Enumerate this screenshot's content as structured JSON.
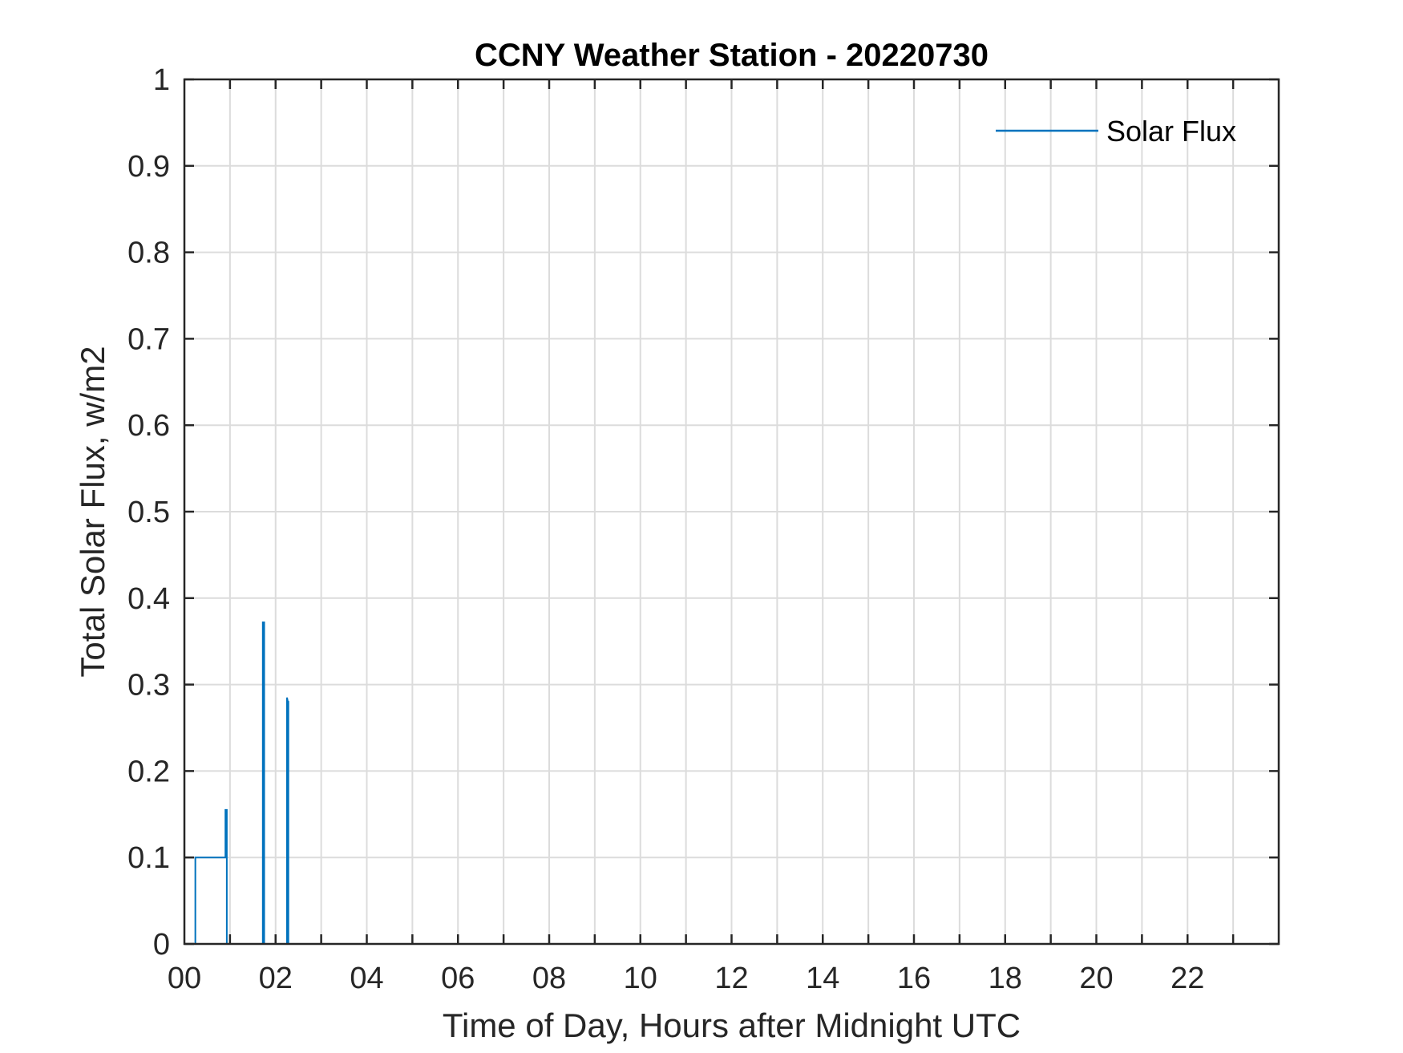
{
  "chart_data": {
    "type": "line",
    "title": "CCNY Weather Station - 20220730",
    "xlabel": "Time of Day, Hours after Midnight UTC",
    "ylabel": "Total Solar Flux, w/m2",
    "xlim": [
      0,
      24
    ],
    "ylim": [
      0,
      1
    ],
    "xticks": [
      0,
      2,
      4,
      6,
      8,
      10,
      12,
      14,
      16,
      18,
      20,
      22
    ],
    "xtick_labels": [
      "00",
      "02",
      "04",
      "06",
      "08",
      "10",
      "12",
      "14",
      "16",
      "18",
      "20",
      "22"
    ],
    "x_minor_gridlines_every_hours": 1,
    "yticks": [
      0,
      0.1,
      0.2,
      0.3,
      0.4,
      0.5,
      0.6,
      0.7,
      0.8,
      0.9,
      1
    ],
    "ytick_labels": [
      "0",
      "0.1",
      "0.2",
      "0.3",
      "0.4",
      "0.5",
      "0.6",
      "0.7",
      "0.8",
      "0.9",
      "1"
    ],
    "grid": true,
    "legend_position": "top-right",
    "series": [
      {
        "name": "Solar Flux",
        "color": "#0072BD",
        "x": [
          0,
          0.2,
          0.24,
          0.24,
          0.9,
          0.9,
          0.93,
          0.93,
          1.72,
          1.72,
          1.75,
          1.75,
          2.25,
          2.25,
          2.27,
          2.28,
          2.28,
          24
        ],
        "y": [
          0,
          0,
          0,
          0.1,
          0.1,
          0.155,
          0.155,
          0,
          0,
          0.372,
          0.372,
          0,
          0,
          0.285,
          0.28,
          0.28,
          0,
          0
        ]
      }
    ]
  }
}
